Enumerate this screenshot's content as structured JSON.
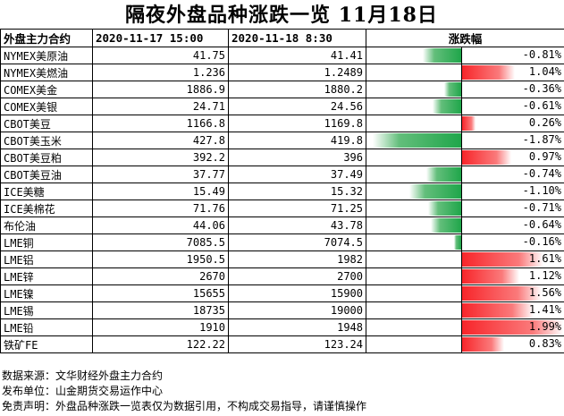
{
  "title": "隔夜外盘品种涨跌一览  11月18日",
  "headers": {
    "name": "外盘主力合约",
    "date1": "2020-11-17 15:00",
    "date2": "2020-11-18 8:30",
    "change": "涨跌幅"
  },
  "rows": [
    {
      "name": "NYMEX美原油",
      "v1": "41.75",
      "v2": "41.41",
      "change": "-0.81%",
      "pct": -0.81
    },
    {
      "name": "NYMEX美燃油",
      "v1": "1.236",
      "v2": "1.2489",
      "change": "1.04%",
      "pct": 1.04
    },
    {
      "name": "COMEX美金",
      "v1": "1886.9",
      "v2": "1880.2",
      "change": "-0.36%",
      "pct": -0.36
    },
    {
      "name": "COMEX美银",
      "v1": "24.71",
      "v2": "24.56",
      "change": "-0.61%",
      "pct": -0.61
    },
    {
      "name": "CBOT美豆",
      "v1": "1166.8",
      "v2": "1169.8",
      "change": "0.26%",
      "pct": 0.26
    },
    {
      "name": "CBOT美玉米",
      "v1": "427.8",
      "v2": "419.8",
      "change": "-1.87%",
      "pct": -1.87
    },
    {
      "name": "CBOT美豆粕",
      "v1": "392.2",
      "v2": "396",
      "change": "0.97%",
      "pct": 0.97
    },
    {
      "name": "CBOT美豆油",
      "v1": "37.77",
      "v2": "37.49",
      "change": "-0.74%",
      "pct": -0.74
    },
    {
      "name": "ICE美糖",
      "v1": "15.49",
      "v2": "15.32",
      "change": "-1.10%",
      "pct": -1.1
    },
    {
      "name": "ICE美棉花",
      "v1": "71.76",
      "v2": "71.25",
      "change": "-0.71%",
      "pct": -0.71
    },
    {
      "name": "布伦油",
      "v1": "44.06",
      "v2": "43.78",
      "change": "-0.64%",
      "pct": -0.64
    },
    {
      "name": "LME铜",
      "v1": "7085.5",
      "v2": "7074.5",
      "change": "-0.16%",
      "pct": -0.16
    },
    {
      "name": "LME铝",
      "v1": "1950.5",
      "v2": "1982",
      "change": "1.61%",
      "pct": 1.61
    },
    {
      "name": "LME锌",
      "v1": "2670",
      "v2": "2700",
      "change": "1.12%",
      "pct": 1.12
    },
    {
      "name": "LME镍",
      "v1": "15655",
      "v2": "15900",
      "change": "1.56%",
      "pct": 1.56
    },
    {
      "name": "LME锡",
      "v1": "18735",
      "v2": "19000",
      "change": "1.41%",
      "pct": 1.41
    },
    {
      "name": "LME铅",
      "v1": "1910",
      "v2": "1948",
      "change": "1.99%",
      "pct": 1.99
    },
    {
      "name": "铁矿FE",
      "v1": "122.22",
      "v2": "123.24",
      "change": "0.83%",
      "pct": 0.83
    }
  ],
  "footer": {
    "source": "数据来源：文华财经外盘主力合约",
    "publisher": "发布单位：山金期货交易运作中心",
    "disclaimer": "免责声明：外盘品种涨跌一览表仅为数据引用，不构成交易指导，请谨慎操作"
  },
  "colors": {
    "negative_bar": "#1fa64a",
    "positive_bar": "#f8252a"
  }
}
